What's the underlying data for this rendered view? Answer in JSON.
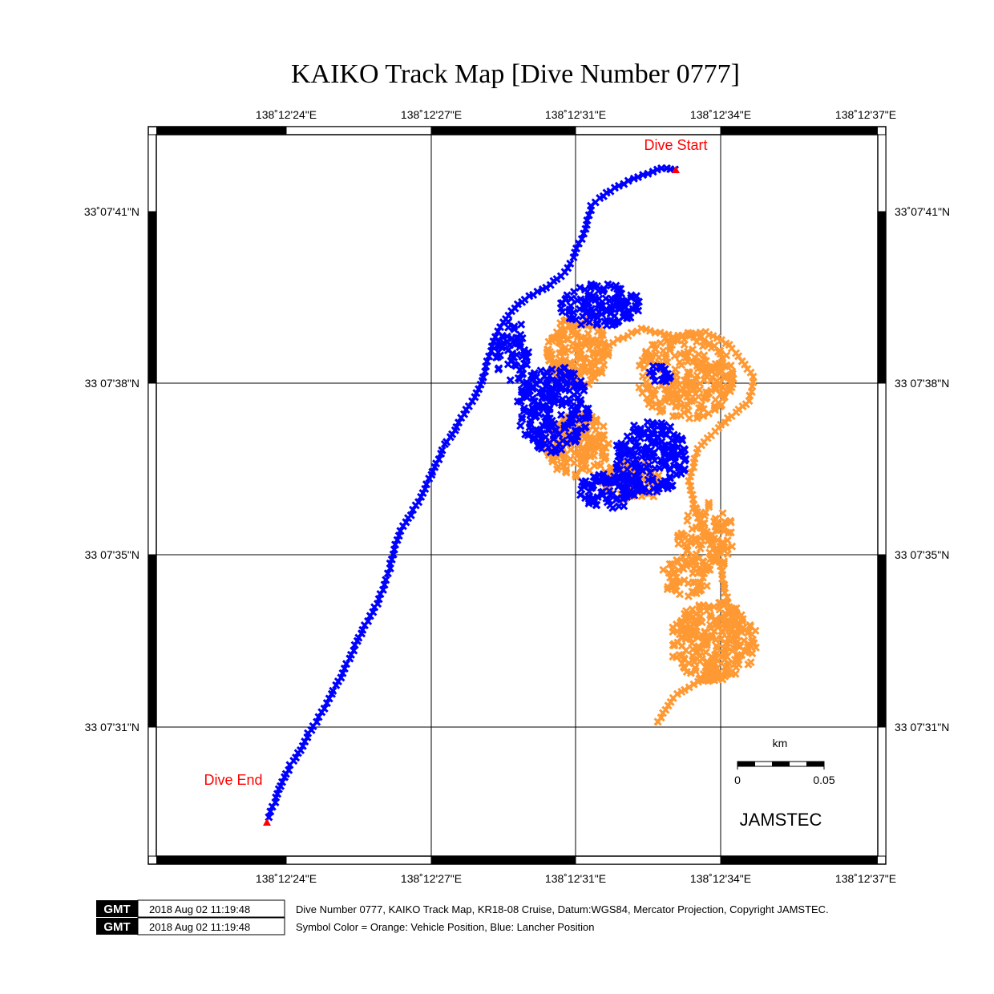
{
  "title": "KAIKO Track Map [Dive Number 0777]",
  "axes": {
    "lon_ticks": [
      "138˚12'24\"E",
      "138˚12'27\"E",
      "138˚12'31\"E",
      "138˚12'34\"E",
      "138˚12'37\"E"
    ],
    "lat_ticks": [
      "33˚07'41\"N",
      "33 07'38\"N",
      "33 07'35\"N",
      "33 07'31\"N"
    ]
  },
  "labels": {
    "dive_start": "Dive Start",
    "dive_end": "Dive End"
  },
  "scale": {
    "unit": "km",
    "left_value": "0",
    "right_value": "0.05"
  },
  "brand": "JAMSTEC",
  "footer": {
    "gmt_logo": "GMT",
    "timestamp_1": "2018 Aug 02 11:19:48",
    "timestamp_2": "2018 Aug 02 11:19:48",
    "caption_1": "Dive Number 0777, KAIKO Track Map, KR18-08 Cruise, Datum:WGS84, Mercator Projection, Copyright JAMSTEC.",
    "caption_2": "Symbol Color = Orange: Vehicle Position, Blue: Lancher Position"
  },
  "colors": {
    "launcher": "#0000ff",
    "vehicle": "#ff9933",
    "marker": "#ff0000"
  }
}
